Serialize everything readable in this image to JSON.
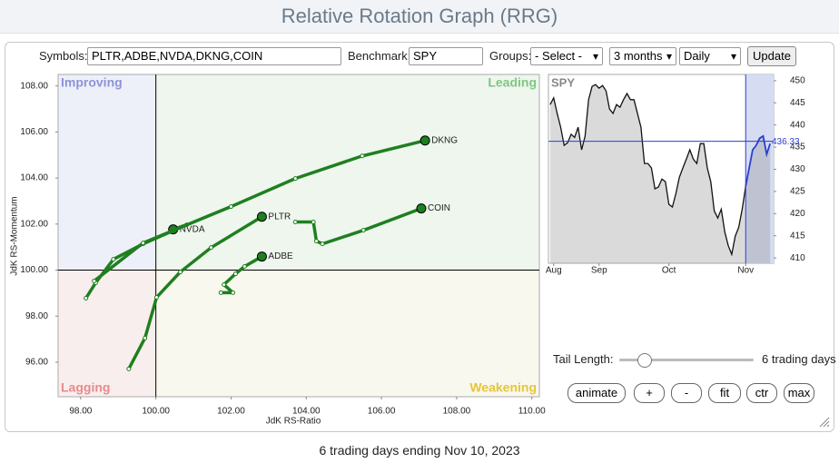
{
  "header": {
    "title": "Relative Rotation Graph (RRG)"
  },
  "controls": {
    "symbols_label": "Symbols:",
    "symbols": "PLTR,ADBE,NVDA,DKNG,COIN",
    "benchmark_label": "Benchmark:",
    "benchmark": "SPY",
    "groups_label": "Groups:",
    "groups": "- Select -",
    "period": "3 months",
    "frequency": "Daily",
    "update": "Update"
  },
  "tail": {
    "label": "Tail Length:",
    "text": "6 trading days"
  },
  "buttons": [
    "animate",
    "+",
    "-",
    "fit",
    "ctr",
    "max"
  ],
  "footer": "6 trading days ending Nov 10, 2023",
  "chart_data": [
    {
      "type": "rrg",
      "x_label": "JdK RS-Ratio",
      "y_label": "JdK RS-Momentum",
      "quadrants": [
        "Improving",
        "Leading",
        "Lagging",
        "Weakening"
      ],
      "xlim": [
        97.4,
        110.2
      ],
      "ylim": [
        94.5,
        108.5
      ],
      "center": 100,
      "color": "#1f7f1f",
      "xticks": [
        {
          "value": 98,
          "label": "98.00"
        },
        {
          "value": 100,
          "label": "100.00"
        },
        {
          "value": 102,
          "label": "102.00"
        },
        {
          "value": 104,
          "label": "104.00"
        },
        {
          "value": 106,
          "label": "106.00"
        },
        {
          "value": 108,
          "label": "108.00"
        },
        {
          "value": 110,
          "label": "110.00"
        }
      ],
      "yticks": [
        {
          "value": 96,
          "label": "96.00"
        },
        {
          "value": 98,
          "label": "98.00"
        },
        {
          "value": 100,
          "label": "100.00"
        },
        {
          "value": 102,
          "label": "102.00"
        },
        {
          "value": 104,
          "label": "104.00"
        },
        {
          "value": 106,
          "label": "106.00"
        },
        {
          "value": 108,
          "label": "108.00"
        }
      ],
      "series": [
        {
          "name": "PLTR",
          "x": [
            99.28,
            99.71,
            100.02,
            100.65,
            101.47,
            102.82
          ],
          "y": [
            95.71,
            97.05,
            98.82,
            99.92,
            100.98,
            102.32
          ]
        },
        {
          "name": "ADBE",
          "x": [
            101.73,
            102.05,
            101.81,
            102.12,
            102.36,
            102.82
          ],
          "y": [
            99.02,
            99.02,
            99.37,
            99.84,
            100.16,
            100.59
          ]
        },
        {
          "name": "NVDA",
          "x": [
            98.14,
            98.4,
            98.87,
            99.66,
            100.82,
            100.46
          ],
          "y": [
            98.78,
            99.45,
            100.47,
            101.14,
            101.97,
            101.77
          ]
        },
        {
          "name": "DKNG",
          "x": [
            98.36,
            99.66,
            102.0,
            103.71,
            105.49,
            107.16
          ],
          "y": [
            99.53,
            101.18,
            102.76,
            103.98,
            104.96,
            105.63
          ]
        },
        {
          "name": "COIN",
          "x": [
            103.71,
            104.19,
            104.27,
            104.43,
            105.52,
            107.06
          ],
          "y": [
            102.09,
            102.09,
            101.26,
            101.14,
            101.73,
            102.68
          ]
        }
      ]
    },
    {
      "type": "line",
      "title": "SPY",
      "color": "#111111",
      "recent_color": "#2a3fd0",
      "recent_start": 56,
      "current_value": 436.33,
      "xlim": [
        -0.5,
        64
      ],
      "ylim": [
        408.8,
        451.4
      ],
      "xticks": [
        {
          "value": 1,
          "label": "Aug"
        },
        {
          "value": 14,
          "label": "Sep"
        },
        {
          "value": 34,
          "label": "Oct"
        },
        {
          "value": 56,
          "label": "Nov"
        }
      ],
      "yticks": [
        410,
        415,
        420,
        425,
        430,
        435,
        440,
        445,
        450
      ],
      "values": [
        444.6,
        446.1,
        442.6,
        439.5,
        435.4,
        436.0,
        437.9,
        437.2,
        439.5,
        434.4,
        437.5,
        445.7,
        448.7,
        449.1,
        448.3,
        448.9,
        447.7,
        443.6,
        442.6,
        444.6,
        444.0,
        445.7,
        447.1,
        445.7,
        445.7,
        442.6,
        439.5,
        431.3,
        431.3,
        430.3,
        425.6,
        426.0,
        427.8,
        427.2,
        422.1,
        421.5,
        424.5,
        428.2,
        430.3,
        432.3,
        434.4,
        432.3,
        431.3,
        435.8,
        435.8,
        430.3,
        427.2,
        420.6,
        419.0,
        421.0,
        415.9,
        412.8,
        410.8,
        414.9,
        416.9,
        421.0,
        426.2,
        430.3,
        434.4,
        435.4,
        437.0,
        437.5,
        433.4,
        435.8
      ]
    }
  ]
}
